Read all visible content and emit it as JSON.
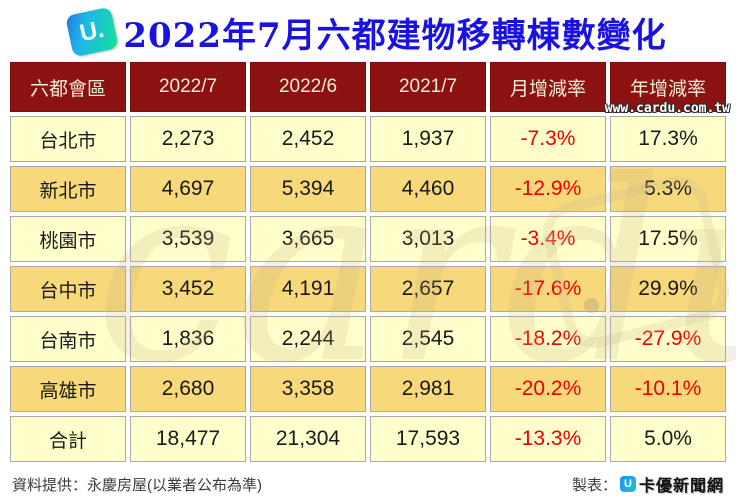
{
  "title": "2022年7月六都建物移轉棟數變化",
  "logo": {
    "letter": "U."
  },
  "watermark": {
    "big_text": "cardu",
    "url_text": "www.cardu.com.tw"
  },
  "colors": {
    "title_blue": "#1a12e0",
    "header_bg": "#8c1212",
    "header_text": "#f2edd7",
    "row_light": "#ffffcc",
    "row_gold": "#f7d87a",
    "negative_red": "#ee0000",
    "text_dark": "#1a1a1a"
  },
  "chart_data": {
    "type": "table",
    "title": "2022年7月六都建物移轉棟數變化",
    "columns": [
      "六都會區",
      "2022/7",
      "2022/6",
      "2021/7",
      "月增減率",
      "年增減率"
    ],
    "rows": [
      [
        "台北市",
        "2,273",
        "2,452",
        "1,937",
        "-7.3%",
        "17.3%"
      ],
      [
        "新北市",
        "4,697",
        "5,394",
        "4,460",
        "-12.9%",
        "5.3%"
      ],
      [
        "桃園市",
        "3,539",
        "3,665",
        "3,013",
        "-3.4%",
        "17.5%"
      ],
      [
        "台中市",
        "3,452",
        "4,191",
        "2,657",
        "-17.6%",
        "29.9%"
      ],
      [
        "台南市",
        "1,836",
        "2,244",
        "2,545",
        "-18.2%",
        "-27.9%"
      ],
      [
        "高雄市",
        "2,680",
        "3,358",
        "2,981",
        "-20.2%",
        "-10.1%"
      ],
      [
        "合計",
        "18,477",
        "21,304",
        "17,593",
        "-13.3%",
        "5.0%"
      ]
    ]
  },
  "footer": {
    "source": "資料提供：永慶房屋(以業者公布為準)",
    "maker_label": "製表：",
    "maker_logo_letter": "U",
    "maker_name": "卡優新聞網"
  }
}
